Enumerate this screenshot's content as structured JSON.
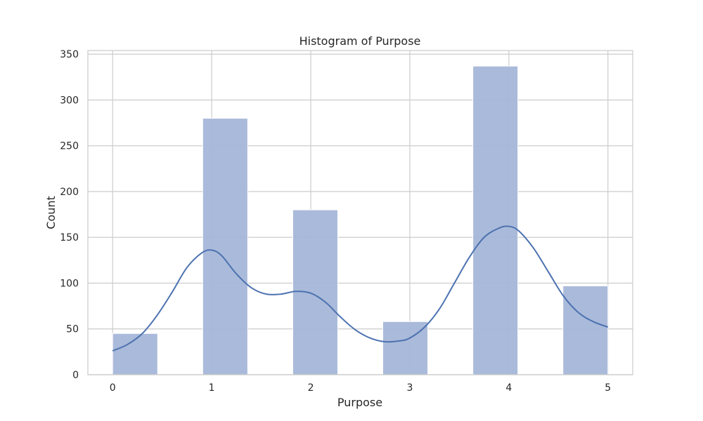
{
  "chart_data": {
    "type": "bar",
    "title": "Histogram of Purpose",
    "xlabel": "Purpose",
    "ylabel": "Count",
    "xlim": [
      -0.25,
      5.25
    ],
    "ylim": [
      0,
      354
    ],
    "x_ticks": [
      0,
      1,
      2,
      3,
      4,
      5
    ],
    "y_ticks": [
      0,
      50,
      100,
      150,
      200,
      250,
      300,
      350
    ],
    "grid": true,
    "bins": [
      {
        "x_start": 0.0,
        "x_end": 0.4545,
        "count": 45
      },
      {
        "x_start": 0.9091,
        "x_end": 1.3636,
        "count": 280
      },
      {
        "x_start": 1.8182,
        "x_end": 2.2727,
        "count": 180
      },
      {
        "x_start": 2.7273,
        "x_end": 3.1818,
        "count": 58
      },
      {
        "x_start": 3.6364,
        "x_end": 4.0909,
        "count": 337
      },
      {
        "x_start": 4.5455,
        "x_end": 5.0,
        "count": 97
      }
    ],
    "kde": {
      "x": [
        0,
        0.15,
        0.3,
        0.45,
        0.6,
        0.75,
        0.9,
        1.0,
        1.1,
        1.25,
        1.4,
        1.55,
        1.7,
        1.85,
        2.0,
        2.15,
        2.3,
        2.45,
        2.6,
        2.75,
        2.9,
        3.0,
        3.15,
        3.3,
        3.45,
        3.6,
        3.75,
        3.9,
        4.0,
        4.1,
        4.25,
        4.4,
        4.55,
        4.7,
        4.85,
        5.0
      ],
      "y": [
        26,
        33,
        45,
        65,
        90,
        117,
        133,
        136,
        130,
        110,
        95,
        88,
        88,
        91,
        89,
        79,
        63,
        49,
        40,
        36,
        37,
        40,
        52,
        72,
        100,
        128,
        150,
        160,
        162,
        157,
        138,
        112,
        86,
        68,
        58,
        52
      ]
    },
    "colors": {
      "bar_fill": "#a5b6d8",
      "bar_edge": "#ffffff",
      "kde_line": "#4c72b0",
      "grid": "#cccccc",
      "frame": "#cccccc",
      "text": "#262626"
    }
  }
}
